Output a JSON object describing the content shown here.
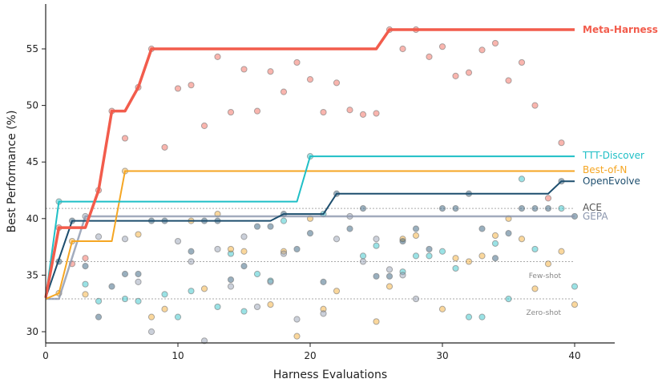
{
  "chart_data": {
    "type": "line",
    "xlabel": "Harness Evaluations",
    "ylabel": "Best Performance (%)",
    "xlim": [
      0,
      43
    ],
    "ylim": [
      28.9,
      59
    ],
    "xticks": [
      0,
      10,
      20,
      30,
      40
    ],
    "yticks": [
      30,
      35,
      40,
      45,
      50,
      55
    ],
    "grid": false,
    "legend": "inline-right",
    "series": [
      {
        "name": "Meta-Harness",
        "color": "#f25c4c",
        "bold": true,
        "best": [
          [
            0,
            33
          ],
          [
            1,
            39.2
          ],
          [
            3,
            39.2
          ],
          [
            4,
            42.5
          ],
          [
            5,
            49.5
          ],
          [
            6,
            49.5
          ],
          [
            7,
            51.6
          ],
          [
            8,
            55
          ],
          [
            25,
            55
          ],
          [
            26,
            56.7
          ],
          [
            40,
            56.7
          ]
        ],
        "points": [
          [
            1,
            39.2
          ],
          [
            2,
            36
          ],
          [
            3,
            36.5
          ],
          [
            4,
            42.5
          ],
          [
            5,
            49.5
          ],
          [
            6,
            47.1
          ],
          [
            7,
            51.6
          ],
          [
            8,
            55
          ],
          [
            9,
            46.3
          ],
          [
            10,
            51.5
          ],
          [
            11,
            51.8
          ],
          [
            12,
            48.2
          ],
          [
            13,
            54.3
          ],
          [
            14,
            49.4
          ],
          [
            15,
            53.2
          ],
          [
            16,
            49.5
          ],
          [
            17,
            53
          ],
          [
            18,
            51.2
          ],
          [
            19,
            53.8
          ],
          [
            20,
            52.3
          ],
          [
            21,
            49.4
          ],
          [
            22,
            52
          ],
          [
            23,
            49.6
          ],
          [
            24,
            49.2
          ],
          [
            25,
            49.3
          ],
          [
            26,
            56.7
          ],
          [
            27,
            55
          ],
          [
            28,
            56.7
          ],
          [
            29,
            54.3
          ],
          [
            30,
            55.2
          ],
          [
            31,
            52.6
          ],
          [
            32,
            52.9
          ],
          [
            33,
            54.9
          ],
          [
            34,
            55.5
          ],
          [
            35,
            52.2
          ],
          [
            36,
            53.8
          ],
          [
            37,
            50
          ],
          [
            38,
            41.8
          ],
          [
            39,
            46.7
          ]
        ]
      },
      {
        "name": "TTT-Discover",
        "color": "#1fbfc6",
        "best": [
          [
            0,
            33
          ],
          [
            1,
            41.5
          ],
          [
            19,
            41.5
          ],
          [
            20,
            45.5
          ],
          [
            40,
            45.5
          ]
        ],
        "points": [
          [
            1,
            41.5
          ],
          [
            3,
            34.2
          ],
          [
            4,
            32.7
          ],
          [
            6,
            32.9
          ],
          [
            7,
            32.7
          ],
          [
            9,
            33.3
          ],
          [
            10,
            31.3
          ],
          [
            11,
            33.6
          ],
          [
            13,
            32.2
          ],
          [
            14,
            36.9
          ],
          [
            15,
            31.8
          ],
          [
            16,
            35.1
          ],
          [
            17,
            34.5
          ],
          [
            18,
            39.8
          ],
          [
            20,
            45.5
          ],
          [
            21,
            40.4
          ],
          [
            24,
            36.7
          ],
          [
            25,
            37.6
          ],
          [
            27,
            35.3
          ],
          [
            28,
            36.7
          ],
          [
            29,
            36.7
          ],
          [
            30,
            37.1
          ],
          [
            31,
            35.6
          ],
          [
            32,
            31.3
          ],
          [
            33,
            31.3
          ],
          [
            34,
            37.8
          ],
          [
            35,
            32.9
          ],
          [
            36,
            43.5
          ],
          [
            37,
            37.3
          ],
          [
            39,
            40.9
          ],
          [
            40,
            34
          ]
        ]
      },
      {
        "name": "Best-of-N",
        "color": "#f5a623",
        "best": [
          [
            0,
            32.9
          ],
          [
            1,
            33.4
          ],
          [
            2,
            38
          ],
          [
            5,
            38
          ],
          [
            6,
            44.2
          ],
          [
            40,
            44.2
          ]
        ],
        "points": [
          [
            1,
            33.4
          ],
          [
            2,
            38
          ],
          [
            3,
            33.3
          ],
          [
            6,
            44.2
          ],
          [
            7,
            38.6
          ],
          [
            8,
            31.3
          ],
          [
            9,
            32
          ],
          [
            11,
            39.8
          ],
          [
            12,
            33.8
          ],
          [
            13,
            40.4
          ],
          [
            14,
            37.3
          ],
          [
            15,
            37.1
          ],
          [
            17,
            32.4
          ],
          [
            18,
            37.1
          ],
          [
            19,
            29.6
          ],
          [
            20,
            40
          ],
          [
            21,
            32
          ],
          [
            22,
            33.6
          ],
          [
            25,
            30.9
          ],
          [
            26,
            34
          ],
          [
            27,
            38.2
          ],
          [
            28,
            38.5
          ],
          [
            30,
            32
          ],
          [
            31,
            36.5
          ],
          [
            32,
            36.2
          ],
          [
            33,
            36.7
          ],
          [
            34,
            38.5
          ],
          [
            35,
            40
          ],
          [
            36,
            38.2
          ],
          [
            37,
            33.8
          ],
          [
            38,
            36
          ],
          [
            39,
            37.1
          ],
          [
            40,
            32.4
          ]
        ]
      },
      {
        "name": "OpenEvolve",
        "color": "#1d4e6e",
        "best": [
          [
            0,
            33
          ],
          [
            2,
            39.8
          ],
          [
            17,
            39.8
          ],
          [
            18,
            40.4
          ],
          [
            21,
            40.4
          ],
          [
            22,
            42.2
          ],
          [
            38,
            42.2
          ],
          [
            39,
            43.3
          ],
          [
            40,
            43.3
          ]
        ],
        "points": [
          [
            1,
            36.2
          ],
          [
            2,
            39.8
          ],
          [
            3,
            35.8
          ],
          [
            4,
            31.3
          ],
          [
            5,
            34
          ],
          [
            6,
            35.1
          ],
          [
            7,
            35.1
          ],
          [
            8,
            39.8
          ],
          [
            9,
            39.8
          ],
          [
            11,
            37.1
          ],
          [
            12,
            39.8
          ],
          [
            13,
            39.8
          ],
          [
            14,
            34.6
          ],
          [
            15,
            35.8
          ],
          [
            16,
            39.3
          ],
          [
            17,
            39.3
          ],
          [
            18,
            40.4
          ],
          [
            19,
            37.3
          ],
          [
            20,
            38.7
          ],
          [
            21,
            34.4
          ],
          [
            22,
            42.2
          ],
          [
            23,
            39.1
          ],
          [
            24,
            40.9
          ],
          [
            25,
            34.9
          ],
          [
            26,
            34.9
          ],
          [
            27,
            38
          ],
          [
            28,
            39.1
          ],
          [
            29,
            37.3
          ],
          [
            30,
            40.9
          ],
          [
            31,
            40.9
          ],
          [
            32,
            42.2
          ],
          [
            33,
            39.1
          ],
          [
            34,
            36.5
          ],
          [
            35,
            38.7
          ],
          [
            36,
            40.9
          ],
          [
            37,
            40.9
          ],
          [
            38,
            40.9
          ],
          [
            39,
            43.3
          ],
          [
            40,
            40.2
          ]
        ]
      },
      {
        "name": "GEPA",
        "color": "#8b96ad",
        "best": [
          [
            0,
            32.9
          ],
          [
            1,
            32.9
          ],
          [
            3,
            40.2
          ],
          [
            40,
            40.2
          ]
        ],
        "points": [
          [
            3,
            40.2
          ],
          [
            4,
            38.4
          ],
          [
            6,
            38.2
          ],
          [
            7,
            34.4
          ],
          [
            8,
            30
          ],
          [
            10,
            38
          ],
          [
            11,
            36.2
          ],
          [
            12,
            29.2
          ],
          [
            13,
            37.3
          ],
          [
            14,
            34
          ],
          [
            15,
            38.4
          ],
          [
            16,
            32.2
          ],
          [
            17,
            34.4
          ],
          [
            18,
            36.9
          ],
          [
            19,
            31.1
          ],
          [
            21,
            31.6
          ],
          [
            22,
            38.2
          ],
          [
            23,
            40.2
          ],
          [
            24,
            36.2
          ],
          [
            25,
            38.2
          ],
          [
            26,
            35.5
          ],
          [
            27,
            35
          ],
          [
            28,
            32.9
          ]
        ]
      }
    ],
    "reference_lines": [
      {
        "name": "ACE",
        "value": 40.9,
        "color": "#555555"
      },
      {
        "name": "Few-shot",
        "value": 36.2,
        "color": "#888888"
      },
      {
        "name": "Zero-shot",
        "value": 32.9,
        "color": "#888888"
      }
    ]
  }
}
